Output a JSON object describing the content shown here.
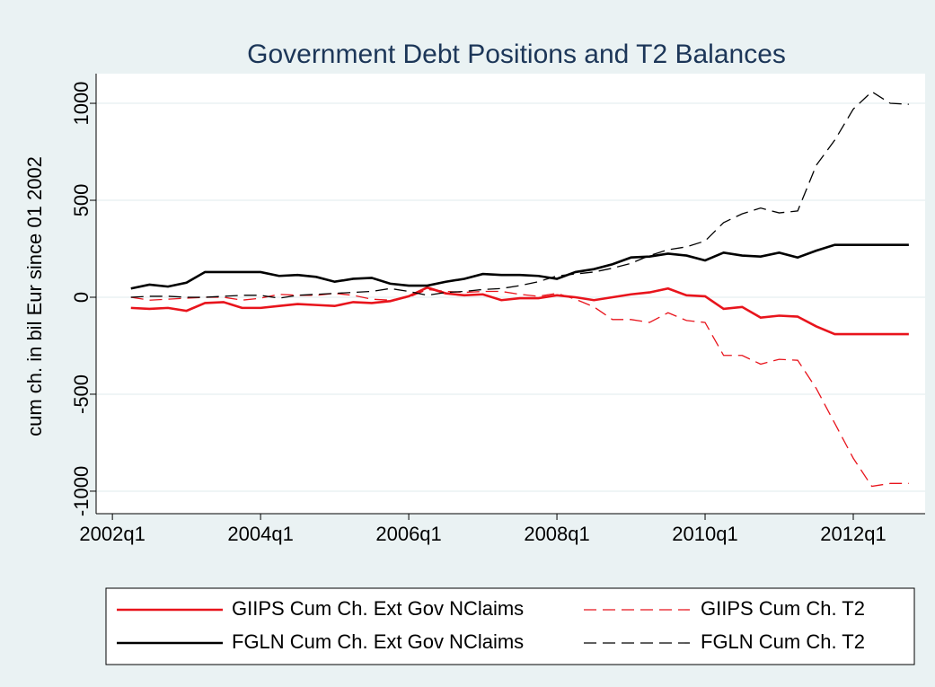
{
  "chart_data": {
    "type": "line",
    "title": "Government Debt Positions and T2 Balances",
    "y_label": "cum ch. in bil Eur since 01 2002",
    "xlim": [
      2001.78,
      2012.97
    ],
    "xticks": [
      {
        "value": 2002,
        "label": "2002q1"
      },
      {
        "value": 2004,
        "label": "2004q1"
      },
      {
        "value": 2006,
        "label": "2006q1"
      },
      {
        "value": 2008,
        "label": "2008q1"
      },
      {
        "value": 2010,
        "label": "2010q1"
      },
      {
        "value": 2012,
        "label": "2012q1"
      }
    ],
    "ylim": [
      -1116,
      1153
    ],
    "yticks": [
      1000,
      500,
      0,
      -500,
      -1000
    ],
    "grid": true,
    "x": [
      2002.25,
      2002.5,
      2002.75,
      2003,
      2003.25,
      2003.5,
      2003.75,
      2004,
      2004.25,
      2004.5,
      2004.75,
      2005,
      2005.25,
      2005.5,
      2005.75,
      2006,
      2006.25,
      2006.5,
      2006.75,
      2007,
      2007.25,
      2007.5,
      2007.75,
      2008,
      2008.25,
      2008.5,
      2008.75,
      2009,
      2009.25,
      2009.5,
      2009.75,
      2010,
      2010.25,
      2010.5,
      2010.75,
      2011,
      2011.25,
      2011.5,
      2011.75,
      2012,
      2012.25,
      2012.5,
      2012.75
    ],
    "series": [
      {
        "name": "GIIPS Cum Ch. Ext Gov NClaims",
        "color": "#e8141c",
        "dash": false,
        "values": [
          -55,
          -60,
          -55,
          -70,
          -30,
          -25,
          -55,
          -55,
          -45,
          -35,
          -40,
          -45,
          -25,
          -30,
          -20,
          5,
          50,
          20,
          10,
          15,
          -15,
          -5,
          -5,
          10,
          0,
          -15,
          0,
          15,
          25,
          45,
          10,
          5,
          -60,
          -50,
          -105,
          -95,
          -100,
          -150,
          -190,
          -190,
          -190,
          -190,
          -190
        ]
      },
      {
        "name": "GIIPS Cum Ch. T2",
        "color": "#e8141c",
        "dash": true,
        "values": [
          0,
          -15,
          -10,
          -5,
          0,
          0,
          -15,
          -5,
          15,
          10,
          10,
          20,
          10,
          -10,
          -15,
          0,
          40,
          30,
          25,
          30,
          30,
          15,
          5,
          20,
          -10,
          -50,
          -115,
          -115,
          -130,
          -80,
          -120,
          -130,
          -300,
          -300,
          -345,
          -320,
          -325,
          -470,
          -650,
          -830,
          -975,
          -960,
          -960
        ]
      },
      {
        "name": "FGLN Cum Ch. Ext Gov NClaims",
        "color": "#000000",
        "dash": false,
        "values": [
          45,
          65,
          55,
          75,
          130,
          130,
          130,
          130,
          110,
          115,
          105,
          80,
          95,
          100,
          70,
          60,
          60,
          80,
          95,
          120,
          115,
          115,
          110,
          95,
          130,
          145,
          170,
          205,
          210,
          225,
          215,
          190,
          230,
          215,
          210,
          230,
          205,
          240,
          270,
          270,
          270,
          270,
          270
        ]
      },
      {
        "name": "FGLN Cum Ch. T2",
        "color": "#000000",
        "dash": true,
        "values": [
          0,
          5,
          5,
          0,
          0,
          5,
          10,
          10,
          -5,
          10,
          15,
          20,
          25,
          30,
          45,
          30,
          10,
          25,
          30,
          40,
          45,
          60,
          80,
          110,
          120,
          130,
          150,
          175,
          215,
          245,
          260,
          290,
          385,
          430,
          460,
          435,
          445,
          680,
          810,
          970,
          1060,
          1000,
          995
        ]
      }
    ]
  }
}
